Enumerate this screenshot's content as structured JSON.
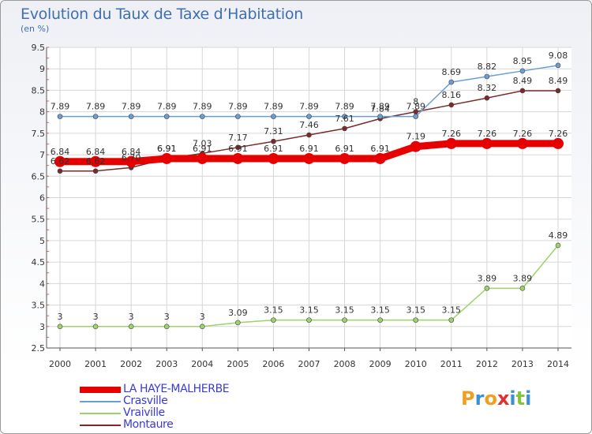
{
  "title": "Evolution du Taux de Taxe d’Habitation",
  "unit": "(en %)",
  "logo": [
    "P",
    "r",
    "o",
    "x",
    "i",
    "t",
    "i"
  ],
  "colors": {
    "title": "#3f6fb0",
    "grid": "#d6d6d6",
    "axis": "#555555",
    "tick_label": "#333333"
  },
  "chart_data": {
    "type": "line",
    "x": [
      2000,
      2001,
      2002,
      2003,
      2004,
      2005,
      2006,
      2007,
      2008,
      2009,
      2010,
      2011,
      2012,
      2013,
      2014
    ],
    "ylim": [
      2.5,
      9.5
    ],
    "yticks": [
      "2.5",
      "3",
      "3.5",
      "4",
      "4.5",
      "5",
      "5.5",
      "6",
      "6.5",
      "7",
      "7.5",
      "8",
      "8.5",
      "9",
      "9.5"
    ],
    "grid": true,
    "legend": "bottom-left",
    "series": [
      {
        "name": "LA HAYE-MALHERBE",
        "color": "#e60000",
        "values": [
          6.84,
          6.84,
          6.84,
          6.91,
          6.91,
          6.91,
          6.91,
          6.91,
          6.91,
          6.91,
          7.19,
          7.26,
          7.26,
          7.26,
          7.26
        ],
        "labels": [
          "6.84",
          "6.84",
          "6.84",
          "6.91",
          "6.91",
          "6.91",
          "6.91",
          "6.91",
          "6.91",
          "6.91",
          "7.19",
          "7.26",
          "7.26",
          "7.26",
          "7.26"
        ]
      },
      {
        "name": "Crasville",
        "color": "#6a9fd6",
        "values": [
          7.89,
          7.89,
          7.89,
          7.89,
          7.89,
          7.89,
          7.89,
          7.89,
          7.89,
          7.89,
          7.89,
          8.69,
          8.82,
          8.95,
          9.08
        ],
        "labels": [
          "7.89",
          "7.89",
          "7.89",
          "7.89",
          "7.89",
          "7.89",
          "7.89",
          "7.89",
          "7.89",
          "7.89",
          "7.89",
          "8.69",
          "8.82",
          "8.95",
          "9.08"
        ]
      },
      {
        "name": "Vraiville",
        "color": "#9ed36a",
        "values": [
          3,
          3,
          3,
          3,
          3,
          3.09,
          3.15,
          3.15,
          3.15,
          3.15,
          3.15,
          3.15,
          3.89,
          3.89,
          4.89
        ],
        "labels": [
          "3",
          "3",
          "3",
          "3",
          "3",
          "3.09",
          "3.15",
          "3.15",
          "3.15",
          "3.15",
          "3.15",
          "3.15",
          "3.89",
          "3.89",
          "4.89"
        ]
      },
      {
        "name": "Montaure",
        "color": "#7a2a2a",
        "values": [
          6.62,
          6.62,
          6.7,
          6.91,
          7.03,
          7.17,
          7.31,
          7.46,
          7.61,
          7.84,
          8,
          8.16,
          8.32,
          8.49,
          8.49
        ],
        "labels": [
          "6.62",
          "6.62",
          "6.70",
          "6.91",
          "7.03",
          "7.17",
          "7.31",
          "7.46",
          "7.61",
          "7.84",
          "8",
          "8.16",
          "8.32",
          "8.49",
          "8.49"
        ]
      }
    ]
  }
}
